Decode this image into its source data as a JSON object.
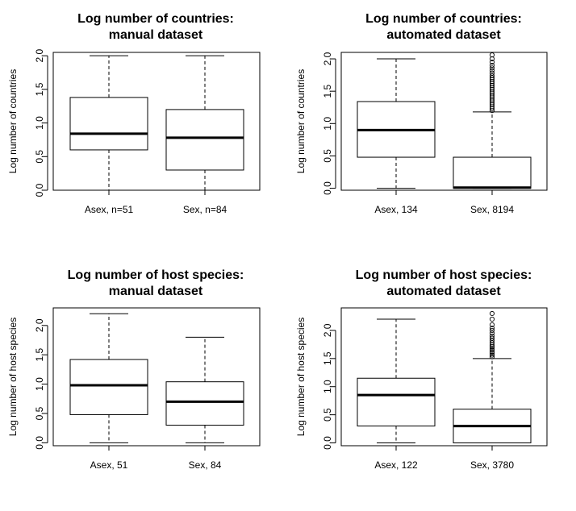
{
  "chart_data": [
    {
      "type": "boxplot",
      "title_line1": "Log number of countries:",
      "title_line2": "manual dataset",
      "ylabel": "Log number of countries",
      "ylim": [
        0,
        2.05
      ],
      "yticks": [
        "0.0",
        "0.5",
        "1.0",
        "1.5",
        "2.0"
      ],
      "boxes": [
        {
          "label": "Asex, n=51",
          "min": 0.0,
          "q1": 0.6,
          "median": 0.84,
          "q3": 1.38,
          "max": 2.0,
          "outliers": []
        },
        {
          "label": "Sex, n=84",
          "min": 0.0,
          "q1": 0.3,
          "median": 0.78,
          "q3": 1.2,
          "max": 2.0,
          "outliers": []
        }
      ]
    },
    {
      "type": "boxplot",
      "title_line1": "Log number of countries:",
      "title_line2": "automated dataset",
      "ylabel": "Log number of countries",
      "ylim": [
        -0.03,
        2.1
      ],
      "yticks": [
        "0.0",
        "0.5",
        "1.0",
        "1.5",
        "2.0"
      ],
      "boxes": [
        {
          "label": "Asex, 134",
          "min": 0.0,
          "q1": 0.48,
          "median": 0.9,
          "q3": 1.34,
          "max": 2.0,
          "outliers": []
        },
        {
          "label": "Sex, 8194",
          "min": 0.0,
          "q1": 0.0,
          "median": 0.01,
          "q3": 0.48,
          "max": 1.18,
          "outliers": [
            1.2,
            1.23,
            1.26,
            1.29,
            1.32,
            1.35,
            1.38,
            1.41,
            1.44,
            1.47,
            1.5,
            1.53,
            1.56,
            1.59,
            1.62,
            1.65,
            1.68,
            1.71,
            1.74,
            1.78,
            1.82,
            1.86,
            1.9,
            1.95,
            2.0,
            2.06
          ]
        }
      ]
    },
    {
      "type": "boxplot",
      "title_line1": "Log number of host species:",
      "title_line2": "manual dataset",
      "ylabel": "Log number of host species",
      "ylim": [
        -0.05,
        2.3
      ],
      "yticks": [
        "0.0",
        "0.5",
        "1.0",
        "1.5",
        "2.0"
      ],
      "boxes": [
        {
          "label": "Asex, 51",
          "min": 0.0,
          "q1": 0.48,
          "median": 0.98,
          "q3": 1.42,
          "max": 2.2,
          "outliers": []
        },
        {
          "label": "Sex, 84",
          "min": 0.0,
          "q1": 0.3,
          "median": 0.7,
          "q3": 1.04,
          "max": 1.8,
          "outliers": []
        }
      ]
    },
    {
      "type": "boxplot",
      "title_line1": "Log number of host species:",
      "title_line2": "automated dataset",
      "ylabel": "Log number of host species",
      "ylim": [
        -0.05,
        2.4
      ],
      "yticks": [
        "0.0",
        "0.5",
        "1.0",
        "1.5",
        "2.0"
      ],
      "boxes": [
        {
          "label": "Asex, 122",
          "min": 0.0,
          "q1": 0.3,
          "median": 0.85,
          "q3": 1.15,
          "max": 2.2,
          "outliers": []
        },
        {
          "label": "Sex, 3780",
          "min": 0.0,
          "q1": 0.0,
          "median": 0.3,
          "q3": 0.6,
          "max": 1.5,
          "outliers": [
            1.53,
            1.56,
            1.59,
            1.62,
            1.65,
            1.68,
            1.71,
            1.74,
            1.78,
            1.82,
            1.86,
            1.9,
            1.95,
            2.0,
            2.04,
            2.1,
            2.2,
            2.3
          ]
        }
      ]
    }
  ]
}
